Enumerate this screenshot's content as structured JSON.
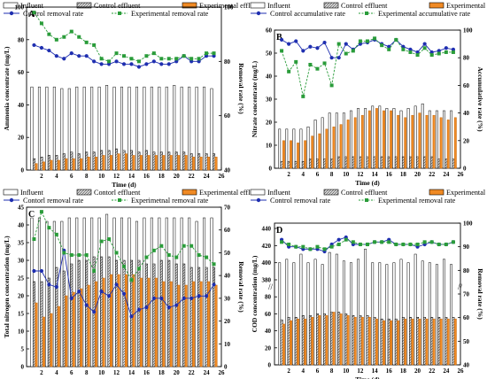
{
  "chart_data": [
    {
      "type": "bar",
      "panel": "A",
      "legend": [
        "Influent",
        "Control effluent",
        "Experimental effluent",
        "Control removal rate",
        "Experimental removal rate"
      ],
      "xlabel": "Time (d)",
      "ylabel": "Ammonia concentrate (mg/L)",
      "y2label": "Removal rate (%)",
      "xlim": [
        0,
        26
      ],
      "xticks": [
        2,
        4,
        6,
        8,
        10,
        12,
        14,
        16,
        18,
        20,
        22,
        24,
        26
      ],
      "ylim": [
        0,
        100
      ],
      "yticks": [
        0,
        20,
        40,
        60,
        80,
        100
      ],
      "y2lim": [
        40,
        100
      ],
      "y2ticks": [
        40,
        60,
        80,
        100
      ],
      "days": [
        1,
        2,
        3,
        4,
        5,
        6,
        7,
        8,
        9,
        10,
        11,
        12,
        13,
        14,
        15,
        16,
        17,
        18,
        19,
        20,
        21,
        22,
        23,
        24,
        25
      ],
      "influent": [
        51,
        51,
        51,
        51,
        50,
        50,
        51,
        51,
        51,
        51,
        52,
        51,
        51,
        51,
        51,
        51,
        51,
        51,
        51,
        52,
        51,
        51,
        51,
        51,
        50
      ],
      "control_effluent": [
        7,
        8,
        9,
        9,
        10,
        11,
        10,
        11,
        11,
        12,
        12,
        13,
        12,
        12,
        11,
        12,
        11,
        11,
        11,
        11,
        11,
        10,
        10,
        10,
        10
      ],
      "experimental_effluent": [
        4,
        5,
        6,
        6,
        7,
        7,
        7,
        8,
        8,
        9,
        9,
        10,
        10,
        9,
        9,
        9,
        9,
        9,
        9,
        9,
        9,
        8,
        8,
        8,
        8
      ],
      "control_removal": [
        86,
        85,
        84,
        82,
        81,
        83,
        82,
        82,
        80,
        79,
        79,
        80,
        79,
        79,
        78,
        79,
        80,
        79,
        79,
        80,
        82,
        80,
        80,
        82,
        82
      ],
      "experimental_removal": [
        98,
        94,
        90,
        88,
        89,
        91,
        89,
        87,
        86,
        81,
        80,
        83,
        82,
        81,
        80,
        82,
        83,
        81,
        81,
        81,
        82,
        81,
        81,
        83,
        83
      ]
    },
    {
      "type": "bar",
      "panel": "B",
      "legend": [
        "Influent",
        "Control effluent",
        "Experimental effluent",
        "Control accumulative rate",
        "Experimental accumulative rate"
      ],
      "xlabel": "Time (d)",
      "ylabel": "Nitrate concentrate (mg/L)",
      "y2label": "Accumulative rate (%)",
      "xlim": [
        0,
        26
      ],
      "xticks": [
        2,
        4,
        6,
        8,
        10,
        12,
        14,
        16,
        18,
        20,
        22,
        24,
        26
      ],
      "ylim": [
        0,
        60
      ],
      "yticks": [
        0,
        10,
        20,
        30,
        40,
        50,
        60
      ],
      "y2lim": [
        0,
        100
      ],
      "y2ticks": [
        0,
        20,
        40,
        60,
        80,
        100
      ],
      "days": [
        1,
        2,
        3,
        4,
        5,
        6,
        7,
        8,
        9,
        10,
        11,
        12,
        13,
        14,
        15,
        16,
        17,
        18,
        19,
        20,
        21,
        22,
        23,
        24,
        25
      ],
      "influent": [
        17,
        17,
        17,
        17,
        18,
        21,
        22,
        24,
        24,
        24,
        25,
        26,
        26,
        27,
        27,
        26,
        26,
        25,
        26,
        27,
        28,
        25,
        25,
        25,
        25
      ],
      "control_effluent": [
        3,
        3,
        3,
        3,
        4,
        4,
        4,
        4,
        5,
        5,
        5,
        5,
        5,
        5,
        5,
        5,
        5,
        5,
        5,
        5,
        5,
        5,
        4,
        4,
        4
      ],
      "experimental_effluent": [
        12,
        12,
        11,
        12,
        14,
        15,
        17,
        18,
        19,
        21,
        22,
        23,
        25,
        26,
        25,
        25,
        23,
        22,
        23,
        24,
        23,
        23,
        22,
        21,
        22
      ],
      "control_accumulative": [
        93,
        90,
        92,
        85,
        88,
        87,
        91,
        80,
        80,
        90,
        86,
        90,
        91,
        93,
        90,
        88,
        93,
        88,
        86,
        84,
        90,
        84,
        85,
        87,
        86
      ],
      "experimental_accumulative": [
        85,
        70,
        77,
        52,
        75,
        72,
        76,
        60,
        90,
        83,
        85,
        92,
        92,
        94,
        89,
        86,
        93,
        86,
        84,
        82,
        87,
        82,
        83,
        84,
        84
      ]
    },
    {
      "type": "bar",
      "panel": "C",
      "legend": [
        "Influent",
        "Contorl effluent",
        "Experimental effluent",
        "Contorl removal rate",
        "Experimetnal removal rate"
      ],
      "xlabel": "Time (d)",
      "ylabel": "Total nitrogen concentration (mg/L)",
      "y2label": "Removal rate (%)",
      "xlim": [
        0,
        26
      ],
      "xticks": [
        2,
        4,
        6,
        8,
        10,
        12,
        14,
        16,
        18,
        20,
        22,
        24,
        26
      ],
      "ylim": [
        0,
        45
      ],
      "yticks": [
        0,
        5,
        10,
        15,
        20,
        25,
        30,
        35,
        40,
        45
      ],
      "y2lim": [
        0,
        70
      ],
      "y2ticks": [
        0,
        10,
        20,
        30,
        40,
        50,
        60,
        70
      ],
      "days": [
        1,
        2,
        3,
        4,
        5,
        6,
        7,
        8,
        9,
        10,
        11,
        12,
        13,
        14,
        15,
        16,
        17,
        18,
        19,
        20,
        21,
        22,
        23,
        24,
        25
      ],
      "influent": [
        42,
        42,
        41,
        41,
        41,
        42,
        42,
        42,
        42,
        42,
        43,
        42,
        42,
        42,
        41,
        42,
        42,
        42,
        42,
        42,
        42,
        42,
        41,
        42,
        42
      ],
      "control_effluent": [
        24,
        24,
        25,
        28,
        27,
        29,
        30,
        30,
        31,
        31,
        31,
        30,
        30,
        30,
        30,
        29,
        29,
        30,
        30,
        29,
        29,
        28,
        28,
        28,
        28
      ],
      "experimental_effluent": [
        18,
        14,
        15,
        17,
        20,
        21,
        22,
        23,
        24,
        25,
        26,
        26,
        26,
        26,
        25,
        25,
        25,
        24,
        24,
        23,
        23,
        24,
        24,
        24,
        23
      ],
      "control_removal": [
        42,
        42,
        36,
        35,
        51,
        30,
        33,
        27,
        24,
        33,
        31,
        36,
        32,
        22,
        25,
        26,
        30,
        30,
        26,
        27,
        30,
        30,
        31,
        31,
        36
      ],
      "experimental_removal": [
        56,
        68,
        61,
        58,
        50,
        49,
        49,
        49,
        42,
        55,
        56,
        50,
        44,
        38,
        43,
        48,
        51,
        53,
        49,
        48,
        53,
        53,
        49,
        48,
        45
      ]
    },
    {
      "type": "bar",
      "panel": "D",
      "legend": [
        "Influent",
        "Control effluent",
        "Experimental effluent",
        "Control removal rate",
        "Experimental removal rate"
      ],
      "xlabel": "Time (d)",
      "ylabel": "COD concentration (mg/L)",
      "y2label": "Removal rate (%)",
      "xlim": [
        0,
        26
      ],
      "xticks": [
        2,
        4,
        6,
        8,
        10,
        12,
        14,
        16,
        18,
        20,
        22,
        24,
        26
      ],
      "yticks_lower": [
        0,
        20,
        40,
        60,
        80
      ],
      "yticks_upper": [
        380,
        400,
        420,
        440
      ],
      "y2lim": [
        40,
        100
      ],
      "y2ticks": [
        40,
        50,
        60,
        70,
        80,
        90,
        100
      ],
      "days": [
        1,
        2,
        3,
        4,
        5,
        6,
        7,
        8,
        9,
        10,
        11,
        12,
        13,
        14,
        15,
        16,
        17,
        18,
        19,
        20,
        21,
        22,
        23,
        24,
        25
      ],
      "influent": [
        400,
        404,
        400,
        410,
        400,
        404,
        398,
        412,
        410,
        402,
        400,
        404,
        416,
        400,
        400,
        398,
        400,
        404,
        400,
        410,
        402,
        400,
        398,
        404,
        398
      ],
      "control_effluent": [
        53,
        56,
        56,
        58,
        58,
        60,
        60,
        62,
        62,
        60,
        58,
        58,
        58,
        56,
        54,
        54,
        54,
        56,
        56,
        56,
        56,
        56,
        56,
        56,
        56
      ],
      "experimental_effluent": [
        48,
        52,
        54,
        54,
        56,
        58,
        58,
        62,
        60,
        58,
        56,
        56,
        56,
        54,
        52,
        52,
        52,
        54,
        54,
        54,
        54,
        54,
        54,
        54,
        54
      ],
      "control_removal": [
        93,
        90,
        90,
        89,
        89,
        89,
        88,
        91,
        93,
        94,
        91,
        91,
        91,
        92,
        92,
        93,
        91,
        91,
        91,
        90,
        91,
        92,
        91,
        91,
        92
      ],
      "experimental_removal": [
        92,
        91,
        90,
        90,
        89,
        90,
        89,
        90,
        91,
        93,
        92,
        91,
        91,
        92,
        92,
        92,
        91,
        91,
        91,
        91,
        92,
        92,
        91,
        91,
        92
      ]
    }
  ],
  "legend_colors": {
    "influent_fill": "#ffffff",
    "control_effluent_fill": "#d0d0d0",
    "experimental_fill": "#f08a24",
    "control_line": "#1f2fb0",
    "experimental_line": "#2a9c3a"
  }
}
